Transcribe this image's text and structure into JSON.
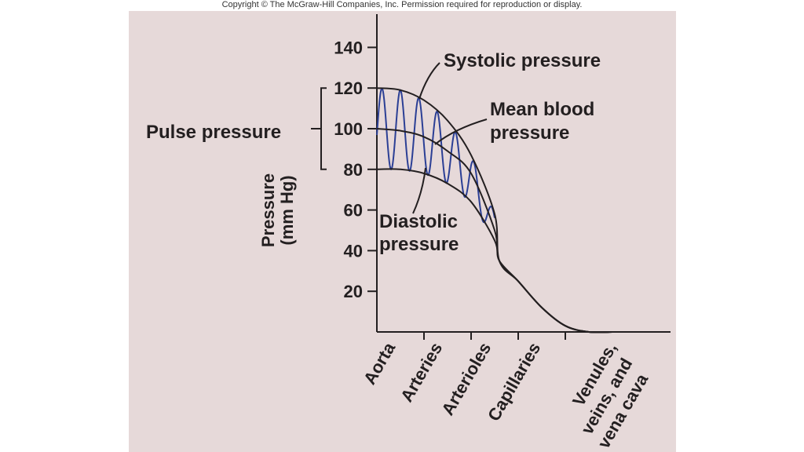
{
  "copyright": "Copyright © The McGraw-Hill Companies, Inc. Permission required for reproduction or display.",
  "colors": {
    "panel_background": "#e6d9d9",
    "axis_and_curves": "#231f20",
    "oscillation": "#2b3f95"
  },
  "chart_data": {
    "type": "line",
    "title": "",
    "ylabel": "Pressure (mm Hg)",
    "ylabel_lines": [
      "Pressure",
      "(mm Hg)"
    ],
    "xlabel": "",
    "ylim": [
      0,
      160
    ],
    "yticks": [
      20,
      40,
      60,
      80,
      100,
      120,
      140
    ],
    "categories": [
      "Aorta",
      "Arteries",
      "Arterioles",
      "Capillaries",
      "Venules, veins, and vena cava"
    ],
    "category_label_lines": [
      [
        "Aorta"
      ],
      [
        "Arteries"
      ],
      [
        "Arterioles"
      ],
      [
        "Capillaries"
      ],
      [
        "Venules,",
        "veins, and",
        "vena cava"
      ]
    ],
    "series": [
      {
        "name": "Systolic pressure",
        "x": [
          0,
          0.5,
          1,
          1.5,
          2,
          2.5,
          2.6,
          3,
          3.5,
          4,
          4.5,
          5
        ],
        "values": [
          120,
          119,
          114,
          104,
          87,
          58,
          35,
          25,
          12,
          3,
          0,
          0
        ]
      },
      {
        "name": "Mean blood pressure",
        "x": [
          0,
          0.5,
          1,
          1.5,
          2,
          2.5,
          2.6,
          3,
          3.5,
          4,
          4.5,
          5
        ],
        "values": [
          100,
          99,
          96,
          89,
          78,
          50,
          35,
          25,
          12,
          3,
          0,
          0
        ]
      },
      {
        "name": "Diastolic pressure",
        "x": [
          0,
          0.5,
          1,
          1.5,
          2,
          2.5,
          2.6,
          3,
          3.5,
          4,
          4.5,
          5
        ],
        "values": [
          80,
          80,
          78,
          73,
          64,
          45,
          35,
          25,
          12,
          3,
          0,
          0
        ]
      }
    ],
    "pulse_pressure": {
      "label": "Pulse pressure",
      "range": [
        80,
        120
      ],
      "at": 100
    },
    "annotations": {
      "systolic": {
        "lines": [
          "Systolic pressure"
        ]
      },
      "mean": {
        "lines": [
          "Mean blood",
          "pressure"
        ]
      },
      "diastolic": {
        "lines": [
          "Diastolic",
          "pressure"
        ]
      }
    },
    "grid": false,
    "legend": "none"
  }
}
